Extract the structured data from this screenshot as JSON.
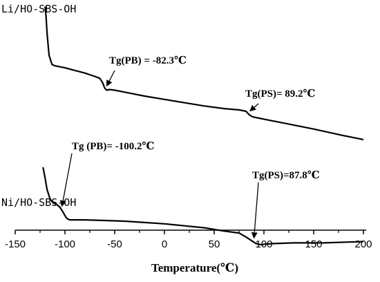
{
  "chart_data": {
    "type": "line",
    "title": "",
    "xlabel": "Temperature(℃)",
    "ylabel": "",
    "xlim": [
      -150,
      200
    ],
    "x_ticks": [
      "-150",
      "-100",
      "-50",
      "0",
      "50",
      "100",
      "150",
      "200"
    ],
    "x_tick_values": [
      -150,
      -100,
      -50,
      0,
      50,
      100,
      150,
      200
    ],
    "y_ticks_shown": false,
    "grid": false,
    "series": [
      {
        "name": "Li/HO-SBS-OH",
        "x": [
          -120,
          -119,
          -118,
          -116,
          -113,
          -110,
          -100,
          -90,
          -80,
          -70,
          -65,
          -62,
          -60,
          -58,
          -55,
          -50,
          -40,
          -20,
          0,
          20,
          40,
          60,
          75,
          82,
          85,
          88,
          90,
          100,
          120,
          150,
          180,
          200
        ],
        "y": [
          95,
          88,
          75,
          58,
          51,
          50,
          48.5,
          46.5,
          44.5,
          42,
          40.5,
          37,
          33,
          31.5,
          32,
          31.5,
          30,
          27,
          24.5,
          22,
          19.5,
          17.5,
          16.5,
          15.5,
          13,
          11.5,
          11,
          9.5,
          6.5,
          2,
          -3,
          -6
        ]
      },
      {
        "name": "Ni/HO-SBS-OH",
        "x": [
          -122,
          -120,
          -118,
          -115,
          -112,
          -108,
          -105,
          -102,
          -99,
          -97,
          -95,
          -90,
          -80,
          -60,
          -40,
          -20,
          0,
          20,
          40,
          60,
          75,
          82,
          88,
          92,
          95,
          98,
          100,
          110,
          130,
          160,
          200
        ],
        "y": [
          -27,
          -35,
          -44,
          -51,
          -54,
          -55.5,
          -57.5,
          -61,
          -65,
          -66.5,
          -67,
          -67,
          -67,
          -67.5,
          -68,
          -69,
          -70,
          -71.5,
          -73,
          -75.5,
          -77,
          -80,
          -83,
          -85,
          -85.5,
          -86,
          -85.5,
          -85,
          -84.5,
          -84.5,
          -83.5
        ]
      }
    ],
    "series_labels": [
      "Li/HO-SBS-OH",
      "Ni/HO-SBS-OH"
    ],
    "annotations": [
      {
        "text": "Tg(PB) = -82.3℃",
        "target_series": 0,
        "target_x": -58
      },
      {
        "text": "Tg(PS)= 89.2℃",
        "target_series": 0,
        "target_x": 86
      },
      {
        "text": "Tg (PB)=  -100.2℃",
        "target_series": 1,
        "target_x": -103
      },
      {
        "text": "Tg(PS)=87.8℃",
        "target_series": 1,
        "target_x": 90
      }
    ]
  }
}
